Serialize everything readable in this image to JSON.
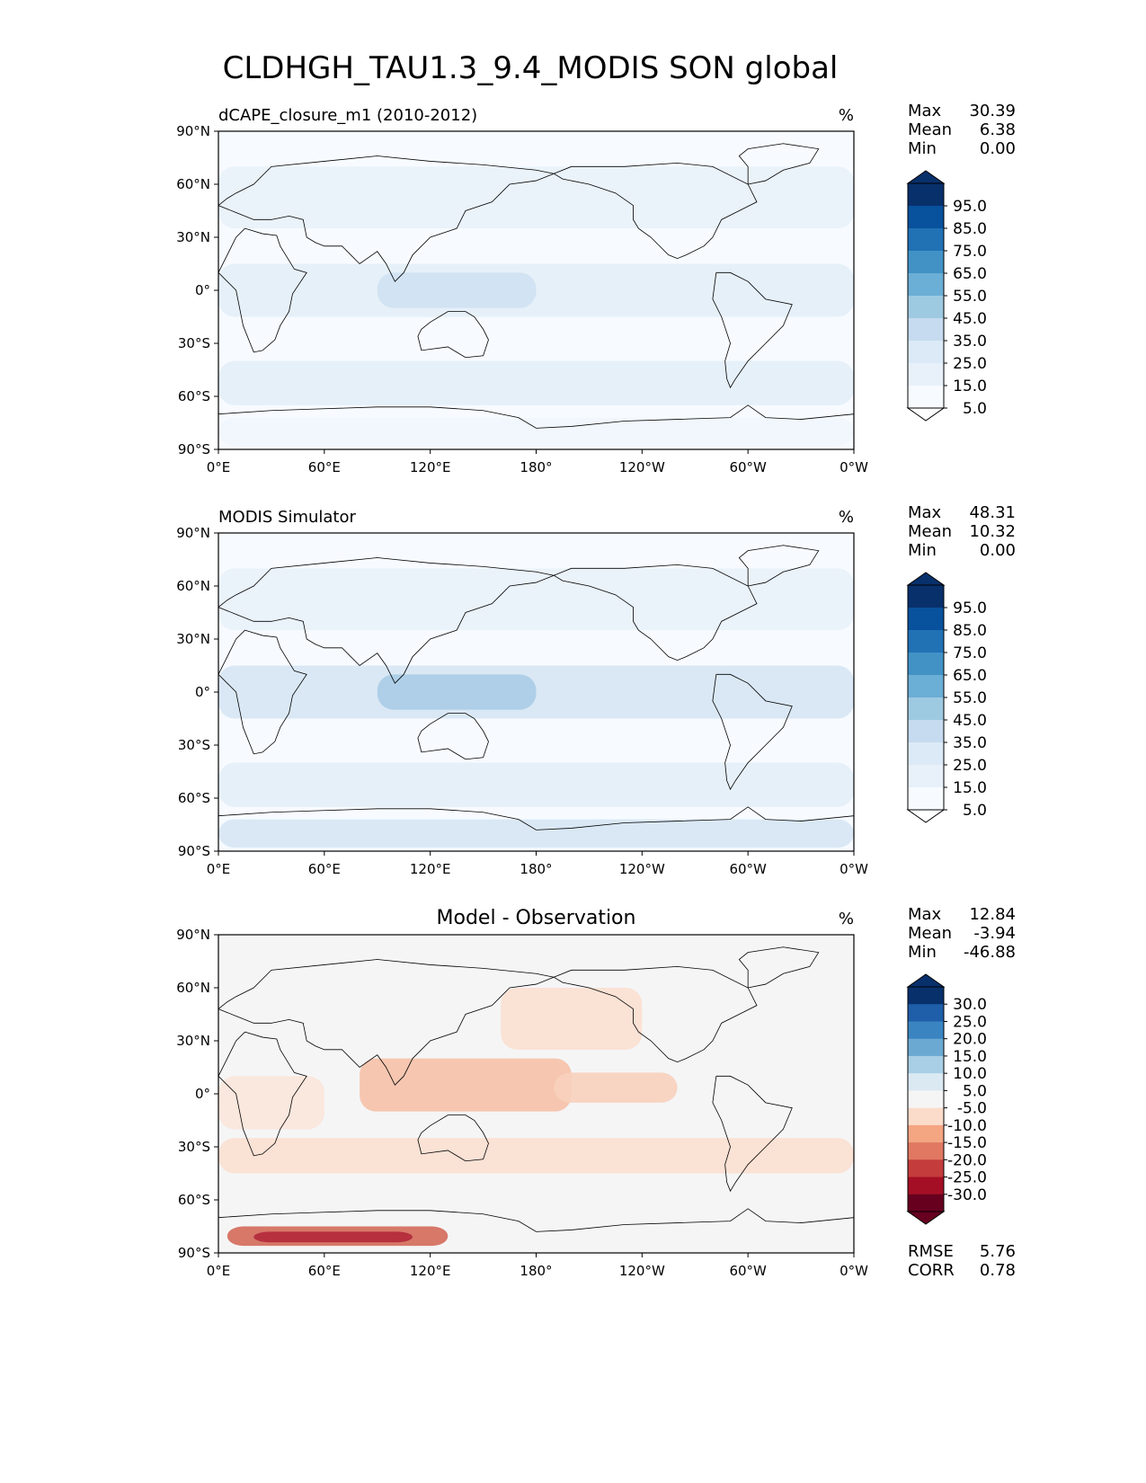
{
  "figure": {
    "title": "CLDHGH_TAU1.3_9.4_MODIS SON global"
  },
  "panels": [
    {
      "title": "dCAPE_closure_m1 (2010-2012)",
      "title_align": "left",
      "units": "%",
      "stats": {
        "max_label": "Max",
        "max": "30.39",
        "mean_label": "Mean",
        "mean": "6.38",
        "min_label": "Min",
        "min": "0.00"
      },
      "colorbar_labels": [
        "95.0",
        "85.0",
        "75.0",
        "65.0",
        "55.0",
        "45.0",
        "35.0",
        "25.0",
        "15.0",
        "5.0"
      ],
      "colorbar_colors": [
        "#08306b",
        "#08519c",
        "#2171b5",
        "#4292c6",
        "#6baed6",
        "#9ecae1",
        "#c6dbef",
        "#dceaf7",
        "#e8f1fa",
        "#f7fbff"
      ],
      "extend_top": "#08306b",
      "extend_bottom": "#ffffff"
    },
    {
      "title": "MODIS Simulator",
      "title_align": "left",
      "units": "%",
      "stats": {
        "max_label": "Max",
        "max": "48.31",
        "mean_label": "Mean",
        "mean": "10.32",
        "min_label": "Min",
        "min": "0.00"
      },
      "colorbar_labels": [
        "95.0",
        "85.0",
        "75.0",
        "65.0",
        "55.0",
        "45.0",
        "35.0",
        "25.0",
        "15.0",
        "5.0"
      ],
      "colorbar_colors": [
        "#08306b",
        "#08519c",
        "#2171b5",
        "#4292c6",
        "#6baed6",
        "#9ecae1",
        "#c6dbef",
        "#dceaf7",
        "#e8f1fa",
        "#f7fbff"
      ],
      "extend_top": "#08306b",
      "extend_bottom": "#ffffff"
    },
    {
      "title": "Model - Observation",
      "title_align": "center",
      "units": "%",
      "stats": {
        "max_label": "Max",
        "max": "12.84",
        "mean_label": "Mean",
        "mean": "-3.94",
        "min_label": "Min",
        "min": "-46.88"
      },
      "colorbar_labels": [
        "30.0",
        "25.0",
        "20.0",
        "15.0",
        "10.0",
        "5.0",
        "-5.0",
        "-10.0",
        "-15.0",
        "-20.0",
        "-25.0",
        "-30.0"
      ],
      "colorbar_colors": [
        "#08306b",
        "#1f5ea8",
        "#3a84c1",
        "#6ba9d2",
        "#a8cfe5",
        "#dbe9f3",
        "#f5f5f5",
        "#fbdccb",
        "#f4a582",
        "#e07862",
        "#c43c3c",
        "#a50f25",
        "#67001f"
      ],
      "extend_top": "#08306b",
      "extend_bottom": "#67001f",
      "extra_stats": {
        "rmse_label": "RMSE",
        "rmse": "5.76",
        "corr_label": "CORR",
        "corr": "0.78"
      }
    }
  ],
  "axes": {
    "lat_ticks": [
      "90°N",
      "60°N",
      "30°N",
      "0°",
      "30°S",
      "60°S",
      "90°S"
    ],
    "lon_ticks": [
      "0°E",
      "60°E",
      "120°E",
      "180°",
      "120°W",
      "60°W",
      "0°W"
    ]
  },
  "colors": {
    "land_outline": "#000000",
    "panel_bg": "#f7fbff",
    "diff_bg": "#f5f5f5"
  }
}
